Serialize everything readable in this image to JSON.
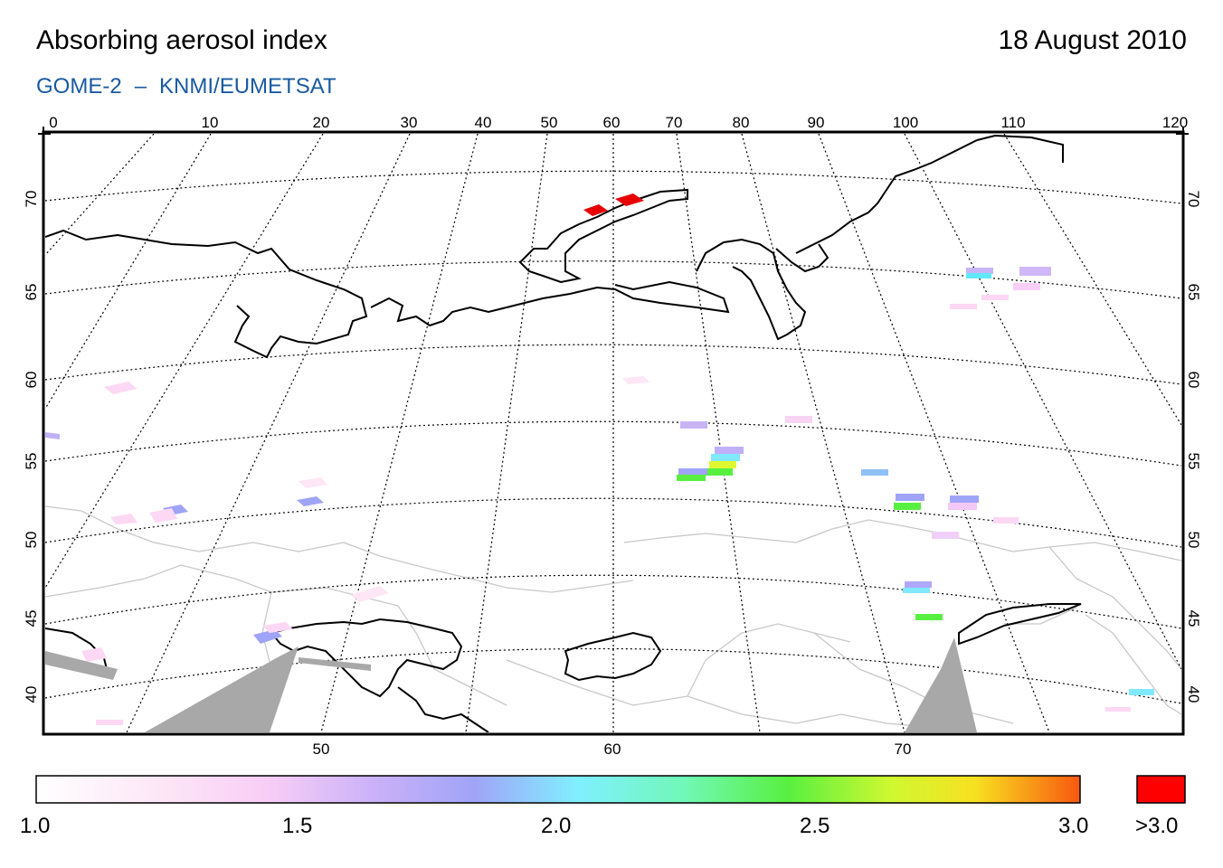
{
  "title": "Absorbing aerosol index",
  "date": "18 August 2010",
  "subtitle_left": "GOME-2",
  "subtitle_sep": "–",
  "subtitle_right": "KNMI/EUMETSAT",
  "map": {
    "top_lon_ticks": [
      "0",
      "10",
      "20",
      "30",
      "40",
      "50",
      "60",
      "70",
      "80",
      "90",
      "100",
      "110",
      "120"
    ],
    "bottom_lon_ticks": [
      "50",
      "60",
      "70"
    ],
    "lat_ticks": [
      "70",
      "65",
      "60",
      "55",
      "50",
      "45",
      "40"
    ]
  },
  "colorbar": {
    "labels": [
      "1.0",
      "1.5",
      "2.0",
      "2.5",
      "3.0"
    ],
    "over_label": ">3.0",
    "stops": [
      "#ffffff",
      "#fcd8f4",
      "#f0c8f8",
      "#a0a0f8",
      "#80e8ff",
      "#70f8b0",
      "#58f040",
      "#d8f830",
      "#f8d020",
      "#f86010"
    ],
    "over_color": "#ff0000"
  }
}
